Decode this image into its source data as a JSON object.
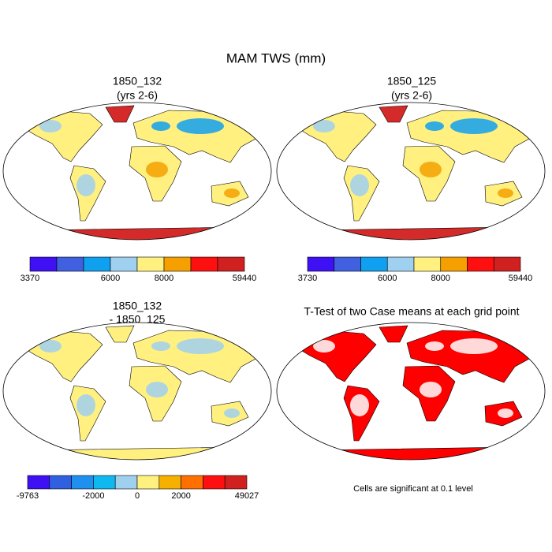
{
  "title": "MAM TWS (mm)",
  "panels": [
    {
      "title": [
        "1850_132",
        "(yrs 2-6)"
      ],
      "colorbar": {
        "colors": [
          "#4010f5",
          "#4060e0",
          "#10a0f0",
          "#a0d0f0",
          "#fff080",
          "#f5a000",
          "#ff1010",
          "#d02020"
        ],
        "labels": [
          "3370",
          null,
          null,
          "6000",
          null,
          "8000",
          null,
          null,
          "59440"
        ]
      }
    },
    {
      "title": [
        "1850_125",
        "(yrs 2-6)"
      ],
      "colorbar": {
        "colors": [
          "#4010f5",
          "#4060e0",
          "#10a0f0",
          "#a0d0f0",
          "#fff080",
          "#f5a000",
          "#ff1010",
          "#d02020"
        ],
        "labels": [
          "3730",
          null,
          null,
          "6000",
          null,
          "8000",
          null,
          null,
          "59440"
        ]
      }
    },
    {
      "title": [
        "1850_132",
        "- 1850_125"
      ],
      "colorbar": {
        "colors": [
          "#4010f5",
          "#3060e0",
          "#1e90f0",
          "#10b8f0",
          "#a0d0f0",
          "#fff080",
          "#f5b000",
          "#ff7000",
          "#ff1010",
          "#d02020"
        ],
        "labels": [
          "-9763",
          null,
          null,
          "-2000",
          null,
          "0",
          null,
          "2000",
          null,
          null,
          "49027"
        ]
      }
    },
    {
      "title": [
        "T-Test of two Case means at each grid point"
      ],
      "note": "Cells are significant at 0.1 level"
    }
  ]
}
